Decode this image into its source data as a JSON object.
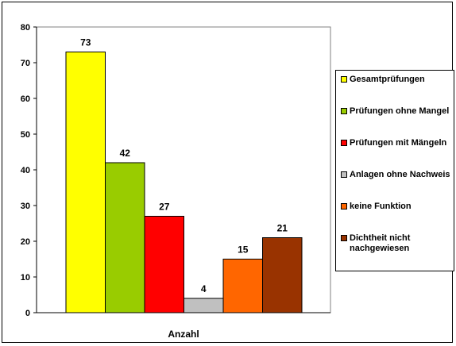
{
  "chart_data": {
    "type": "bar",
    "categories": [
      "Anzahl"
    ],
    "ylim": [
      0,
      80
    ],
    "yticks": [
      0,
      10,
      20,
      30,
      40,
      50,
      60,
      70,
      80
    ],
    "grid": false,
    "legend_position": "right",
    "series": [
      {
        "name": "Gesamtprüfungen",
        "values": [
          73
        ],
        "color": "#ffff00"
      },
      {
        "name": "Prüfungen ohne Mangel",
        "values": [
          42
        ],
        "color": "#99cc00"
      },
      {
        "name": "Prüfungen mit Mängeln",
        "values": [
          27
        ],
        "color": "#ff0000"
      },
      {
        "name": "Anlagen ohne Nachweis",
        "values": [
          4
        ],
        "color": "#c0c0c0"
      },
      {
        "name": "keine Funktion",
        "values": [
          15
        ],
        "color": "#ff6600"
      },
      {
        "name": "Dichtheit nicht nachgewiesen",
        "values": [
          21
        ],
        "color": "#993300"
      }
    ]
  }
}
